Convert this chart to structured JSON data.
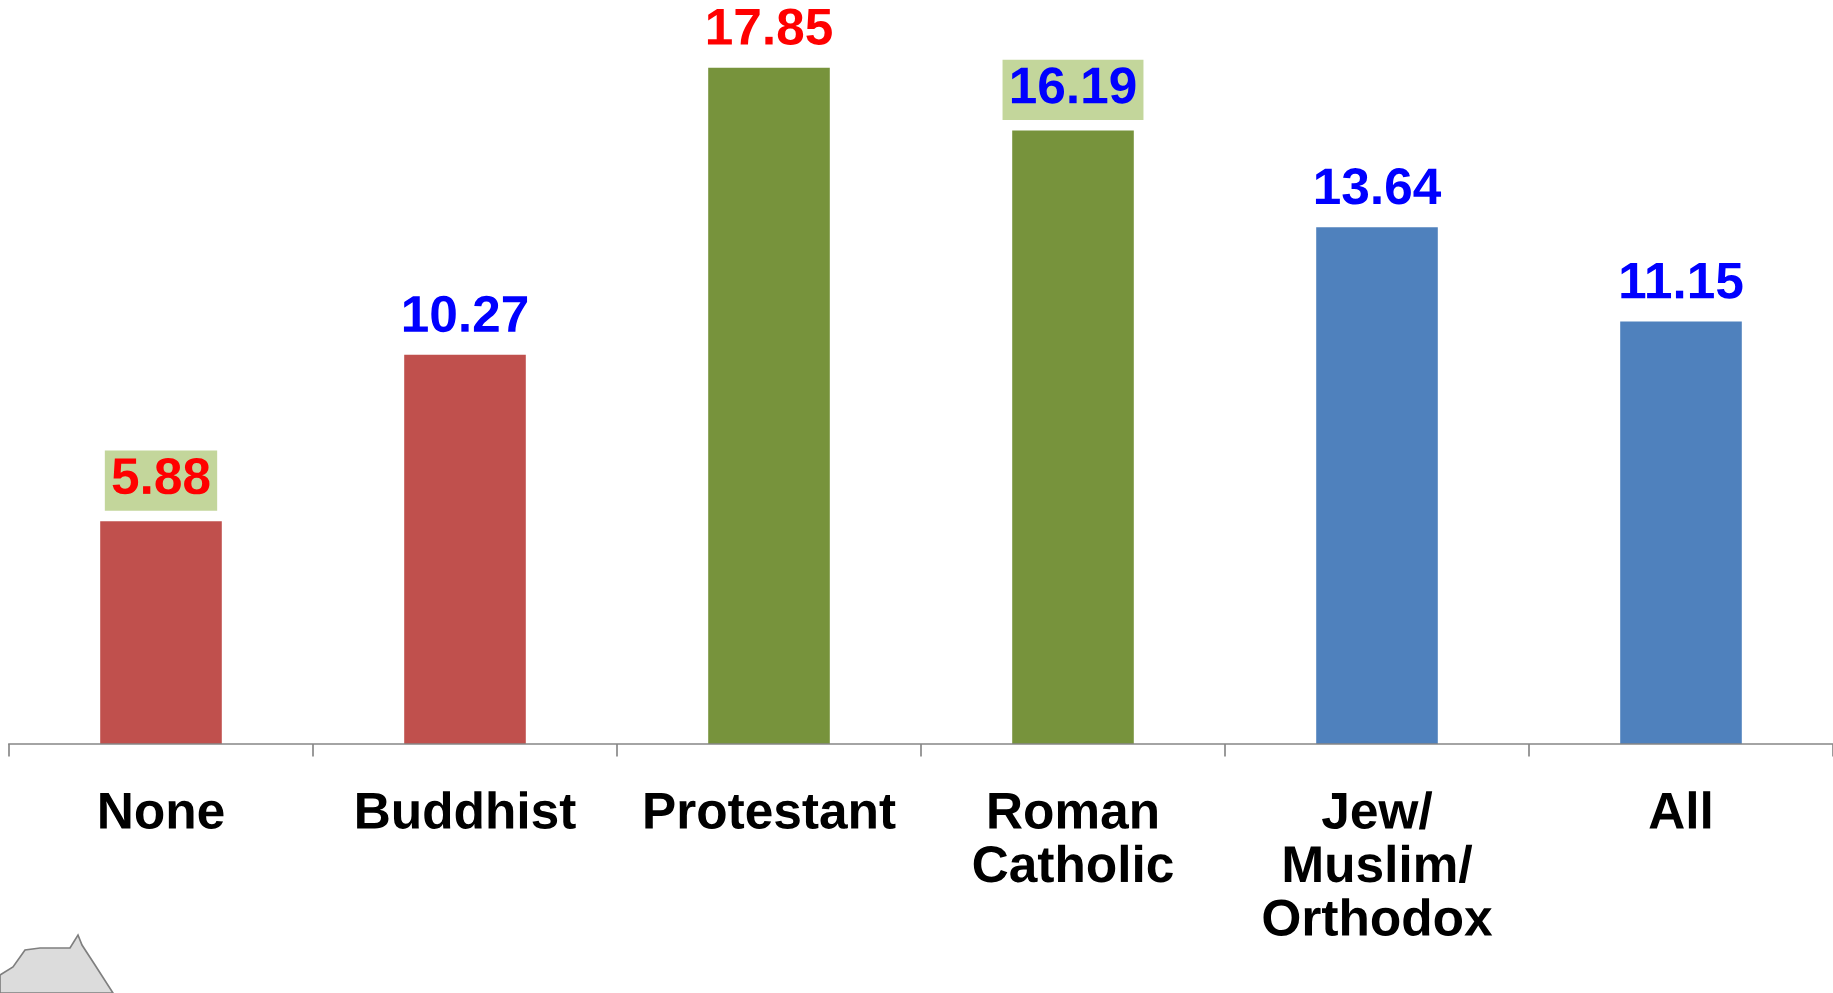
{
  "chart_data": {
    "type": "bar",
    "categories": [
      "None",
      "Buddhist",
      "Protestant",
      "Roman\nCatholic",
      "Jew/\nMuslim/\nOrthodox",
      "All"
    ],
    "values": [
      5.88,
      10.27,
      17.85,
      16.19,
      13.64,
      11.15
    ],
    "colors": [
      "#c0504d",
      "#c0504d",
      "#77933c",
      "#77933c",
      "#4f81bd",
      "#4f81bd"
    ],
    "data_labels": true,
    "tick_labels": "x"
  }
}
